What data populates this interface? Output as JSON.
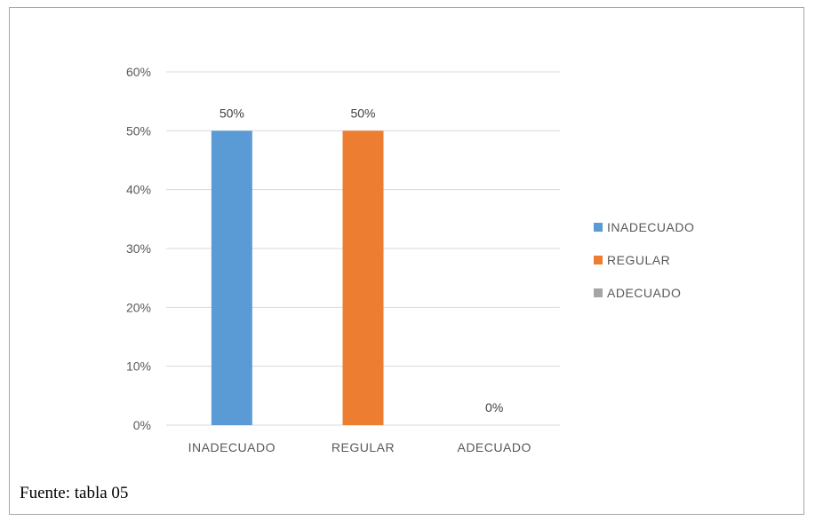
{
  "chart_data": {
    "type": "bar",
    "categories": [
      "INADECUADO",
      "REGULAR",
      "ADECUADO"
    ],
    "values": [
      0.5,
      0.5,
      0.0
    ],
    "data_labels": [
      "50%",
      "50%",
      "0%"
    ],
    "colors": [
      "#5b9bd5",
      "#ed7d31",
      "#a5a5a5"
    ],
    "ylim": [
      0,
      0.6
    ],
    "yticks": [
      0,
      0.1,
      0.2,
      0.3,
      0.4,
      0.5,
      0.6
    ],
    "ytick_labels": [
      "0%",
      "10%",
      "20%",
      "30%",
      "40%",
      "50%",
      "60%"
    ],
    "grid": true,
    "legend": {
      "position": "right",
      "entries": [
        "INADECUADO",
        "REGULAR",
        "ADECUADO"
      ]
    },
    "title": "",
    "xlabel": "",
    "ylabel": ""
  },
  "source_note": "Fuente: tabla 05"
}
